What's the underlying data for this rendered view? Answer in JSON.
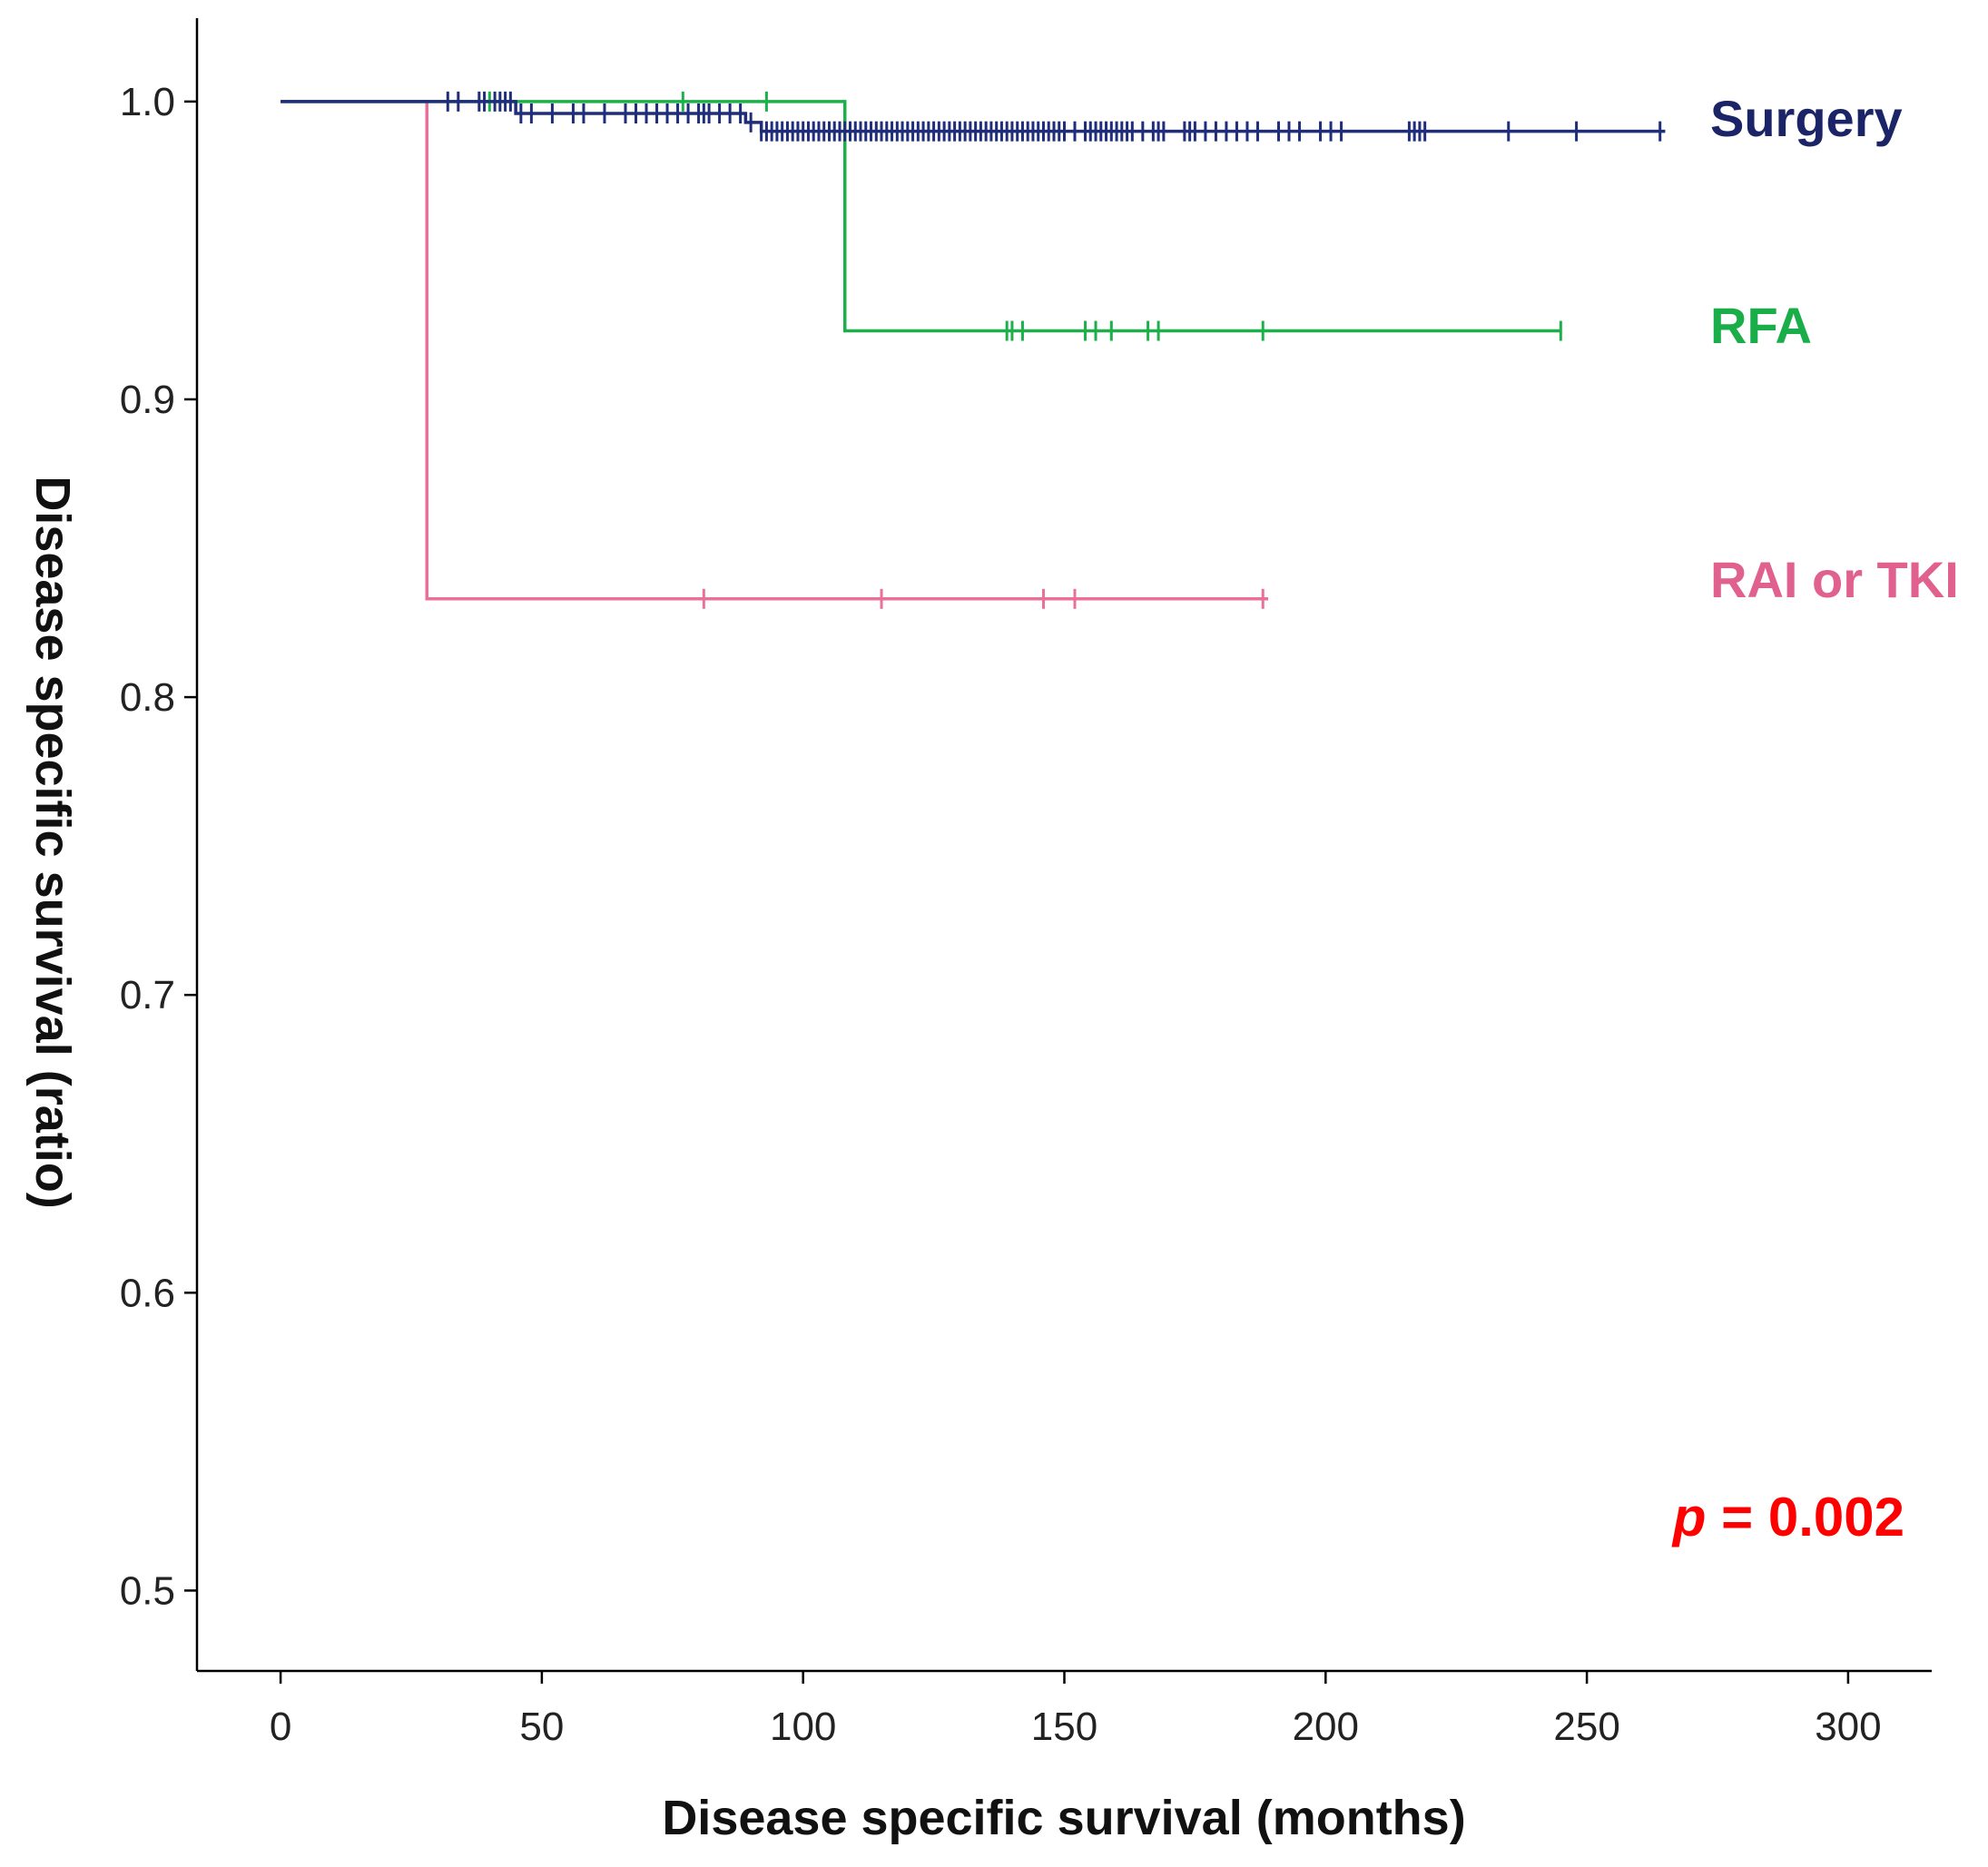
{
  "chart_data": {
    "type": "line",
    "subtype": "kaplan-meier",
    "title": "",
    "xlabel": "Disease specific survival (months)",
    "ylabel": "Disease specific survival (ratio)",
    "xlim": [
      -16,
      316
    ],
    "ylim": [
      0.473,
      1.028
    ],
    "xticks": [
      0,
      50,
      100,
      150,
      200,
      250,
      300
    ],
    "xtick_labels": [
      "0",
      "50",
      "100",
      "150",
      "200",
      "250",
      "300"
    ],
    "yticks": [
      0.5,
      0.6,
      0.7,
      0.8,
      0.9,
      1.0
    ],
    "ytick_labels": [
      "0.5",
      "0.6",
      "0.7",
      "0.8",
      "0.9",
      "1.0"
    ],
    "annotation": {
      "p_symbol": "p",
      "p_equals": " = ",
      "p_value": "0.002"
    },
    "series": [
      {
        "name": "Surgery",
        "color": "#1f2d7a",
        "label_color": "#1a2466",
        "steps": [
          [
            0,
            1.0
          ],
          [
            45,
            0.996
          ],
          [
            89,
            0.993
          ],
          [
            92,
            0.99
          ],
          [
            265,
            0.99
          ]
        ],
        "censored": [
          32,
          34,
          38,
          39,
          41,
          42,
          43,
          44,
          46,
          48,
          52,
          56,
          58,
          62,
          66,
          68,
          70,
          72,
          74,
          76,
          78,
          80,
          81,
          82,
          84,
          86,
          88,
          90,
          92,
          93,
          94,
          95,
          96,
          97,
          98,
          99,
          100,
          101,
          102,
          103,
          104,
          105,
          106,
          107,
          108,
          109,
          110,
          111,
          112,
          113,
          114,
          115,
          116,
          117,
          118,
          119,
          120,
          121,
          122,
          123,
          124,
          125,
          126,
          127,
          128,
          129,
          130,
          131,
          132,
          133,
          134,
          135,
          136,
          137,
          138,
          139,
          140,
          141,
          142,
          143,
          144,
          145,
          146,
          147,
          148,
          149,
          150,
          152,
          154,
          155,
          156,
          157,
          158,
          159,
          160,
          161,
          162,
          163,
          165,
          167,
          168,
          169,
          173,
          174,
          175,
          177,
          179,
          181,
          183,
          185,
          187,
          191,
          193,
          195,
          199,
          201,
          203,
          216,
          217,
          218,
          219,
          235,
          248,
          264
        ]
      },
      {
        "name": "RFA",
        "color": "#1db04a",
        "label_color": "#1aae4a",
        "steps": [
          [
            0,
            1.0
          ],
          [
            108,
            0.923
          ],
          [
            245,
            0.923
          ]
        ],
        "censored": [
          40,
          77,
          93,
          139,
          140,
          142,
          154,
          156,
          159,
          166,
          168,
          188,
          245
        ]
      },
      {
        "name": "RAI or TKI",
        "color": "#e8709a",
        "label_color": "#e0608e",
        "steps": [
          [
            0,
            1.0
          ],
          [
            28,
            0.833
          ],
          [
            189,
            0.833
          ]
        ],
        "censored": [
          81,
          115,
          146,
          152,
          188
        ]
      }
    ]
  }
}
